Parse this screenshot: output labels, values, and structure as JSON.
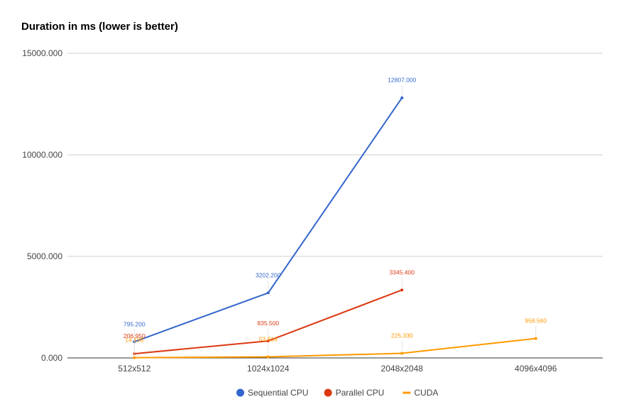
{
  "chart_data": {
    "type": "line",
    "title": "Duration in ms (lower is better)",
    "xlabel": "",
    "ylabel": "",
    "categories": [
      "512x512",
      "1024x1024",
      "2048x2048",
      "4096x4096"
    ],
    "ylim": [
      0,
      15000
    ],
    "yticks": [
      0,
      5000,
      10000,
      15000
    ],
    "ytick_labels": [
      "0.000",
      "5000.000",
      "10000.000",
      "15000.000"
    ],
    "grid": true,
    "legend_position": "bottom",
    "series": [
      {
        "name": "Sequential CPU",
        "color": "#3366cc",
        "legend_marker": "circle",
        "values": [
          795.2,
          3202.2,
          12807.0,
          null
        ],
        "labels": [
          "795.200",
          "3202.200",
          "12807.000",
          ""
        ]
      },
      {
        "name": "Parallel CPU",
        "color": "#dc3912",
        "legend_marker": "circle",
        "values": [
          206.95,
          835.5,
          3345.4,
          null
        ],
        "labels": [
          "206.950",
          "835.500",
          "3345.400",
          ""
        ]
      },
      {
        "name": "CUDA",
        "color": "#ff9900",
        "legend_marker": "line",
        "values": [
          14.198,
          53.816,
          225.33,
          958.56
        ],
        "labels": [
          "14.198",
          "53.816",
          "225.330",
          "958.560"
        ]
      }
    ]
  }
}
